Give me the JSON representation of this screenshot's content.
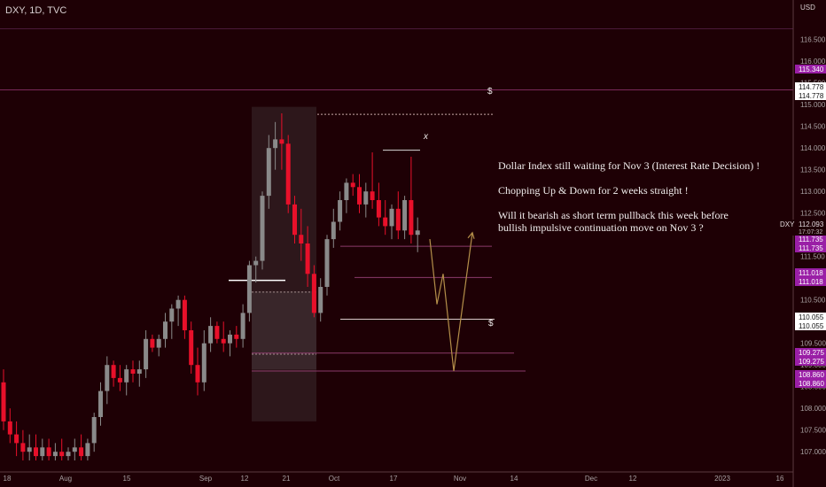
{
  "header": {
    "symbol": "DXY, 1D, TVC",
    "currency": "USD"
  },
  "annotation": {
    "line1": "Dollar Index still waiting for Nov 3 (Interest Rate Decision) !",
    "line2": "Chopping Up & Down for 2 weeks straight !",
    "line3": "Will it bearish as short term pullback this week before",
    "line4": "bullish impulsive continuation move on Nov 3 ?"
  },
  "marks": {
    "dollar_top": "$",
    "dollar_bottom": "$",
    "x_mark": "x"
  },
  "colors": {
    "background": "#1e0005",
    "bull": "#8a8a8a",
    "bear": "#e8102a",
    "level_badge": "#9a1fa6",
    "price_badge_bg": "#ffffff",
    "projection": "#b48f4a"
  },
  "chart_data": {
    "type": "candlestick",
    "symbol": "DXY",
    "interval": "1D",
    "source": "TVC",
    "y_range": [
      106.8,
      116.8
    ],
    "y_ticks": [
      "116.500",
      "116.000",
      "115.500",
      "115.000",
      "114.500",
      "114.000",
      "113.500",
      "113.000",
      "112.500",
      "112.000",
      "111.500",
      "111.000",
      "110.500",
      "110.000",
      "109.500",
      "109.000",
      "108.500",
      "108.000",
      "107.500",
      "107.000"
    ],
    "x_ticks": [
      "18",
      "Aug",
      "15",
      "Sep",
      "12",
      "21",
      "Oct",
      "17",
      "Nov",
      "14",
      "Dec",
      "12",
      "2023",
      "16"
    ],
    "current_price": {
      "symbol": "DXY",
      "value": "112.093",
      "countdown": "17:07:32"
    },
    "price_labels": [
      {
        "value": "115.340",
        "style": "badge"
      },
      {
        "value": "114.778",
        "style": "white"
      },
      {
        "value": "114.778",
        "style": "white"
      },
      {
        "value": "111.735",
        "style": "badge"
      },
      {
        "value": "111.735",
        "style": "badge"
      },
      {
        "value": "111.018",
        "style": "badge"
      },
      {
        "value": "111.018",
        "style": "badge"
      },
      {
        "value": "110.055",
        "style": "white"
      },
      {
        "value": "110.055",
        "style": "white"
      },
      {
        "value": "109.275",
        "style": "badge"
      },
      {
        "value": "109.275",
        "style": "badge"
      },
      {
        "value": "108.860",
        "style": "badge"
      },
      {
        "value": "108.860",
        "style": "badge"
      }
    ],
    "levels": [
      115.34,
      114.778,
      111.735,
      111.018,
      110.055,
      109.275,
      108.86
    ],
    "candles": [
      [
        108.6,
        108.9,
        107.5,
        107.7
      ],
      [
        107.7,
        108.0,
        107.2,
        107.4
      ],
      [
        107.4,
        107.7,
        106.9,
        107.2
      ],
      [
        107.2,
        107.5,
        106.8,
        107.0
      ],
      [
        107.0,
        107.4,
        106.8,
        107.1
      ],
      [
        107.1,
        107.4,
        106.8,
        106.9
      ],
      [
        106.9,
        107.3,
        106.8,
        107.1
      ],
      [
        107.1,
        107.3,
        106.8,
        106.9
      ],
      [
        106.9,
        107.2,
        106.8,
        107.0
      ],
      [
        107.0,
        107.3,
        106.8,
        106.9
      ],
      [
        106.9,
        107.1,
        106.8,
        107.0
      ],
      [
        107.0,
        107.3,
        106.8,
        107.1
      ],
      [
        107.1,
        107.4,
        106.8,
        106.9
      ],
      [
        106.9,
        107.3,
        106.8,
        107.2
      ],
      [
        107.2,
        107.9,
        107.0,
        107.8
      ],
      [
        107.8,
        108.6,
        107.6,
        108.4
      ],
      [
        108.4,
        109.2,
        108.1,
        109.0
      ],
      [
        109.0,
        109.1,
        108.5,
        108.7
      ],
      [
        108.7,
        109.0,
        108.4,
        108.6
      ],
      [
        108.6,
        109.0,
        108.3,
        108.9
      ],
      [
        108.9,
        109.1,
        108.6,
        108.8
      ],
      [
        108.8,
        109.1,
        108.5,
        108.9
      ],
      [
        108.9,
        109.8,
        108.7,
        109.6
      ],
      [
        109.6,
        109.7,
        109.3,
        109.4
      ],
      [
        109.4,
        109.7,
        109.2,
        109.6
      ],
      [
        109.6,
        110.2,
        109.4,
        110.0
      ],
      [
        110.0,
        110.4,
        109.6,
        110.3
      ],
      [
        110.3,
        110.6,
        109.9,
        110.5
      ],
      [
        110.5,
        110.6,
        109.6,
        109.8
      ],
      [
        109.8,
        110.0,
        108.8,
        109.0
      ],
      [
        109.0,
        109.4,
        108.3,
        108.6
      ],
      [
        108.6,
        109.8,
        108.4,
        109.5
      ],
      [
        109.5,
        110.1,
        109.3,
        109.9
      ],
      [
        109.9,
        110.0,
        109.5,
        109.6
      ],
      [
        109.6,
        110.0,
        109.3,
        109.5
      ],
      [
        109.5,
        109.8,
        109.2,
        109.7
      ],
      [
        109.7,
        109.9,
        109.4,
        109.6
      ],
      [
        109.6,
        110.4,
        109.4,
        110.2
      ],
      [
        110.2,
        111.4,
        110.0,
        111.3
      ],
      [
        111.3,
        111.5,
        110.9,
        111.4
      ],
      [
        111.4,
        113.0,
        111.2,
        112.9
      ],
      [
        112.9,
        114.3,
        112.6,
        114.0
      ],
      [
        114.0,
        114.6,
        113.5,
        114.2
      ],
      [
        114.2,
        114.8,
        113.5,
        114.1
      ],
      [
        114.1,
        114.3,
        112.5,
        112.7
      ],
      [
        112.7,
        112.9,
        111.8,
        112.0
      ],
      [
        112.0,
        112.6,
        111.4,
        111.8
      ],
      [
        111.8,
        112.2,
        110.8,
        111.1
      ],
      [
        111.1,
        111.3,
        110.1,
        110.2
      ],
      [
        110.2,
        111.0,
        110.0,
        110.8
      ],
      [
        110.8,
        112.0,
        110.6,
        111.9
      ],
      [
        111.9,
        112.6,
        111.7,
        112.3
      ],
      [
        112.3,
        113.0,
        112.1,
        112.8
      ],
      [
        112.8,
        113.3,
        112.5,
        113.2
      ],
      [
        113.2,
        113.4,
        112.9,
        113.1
      ],
      [
        113.1,
        113.4,
        112.5,
        112.7
      ],
      [
        112.7,
        113.2,
        112.4,
        113.0
      ],
      [
        113.0,
        113.9,
        112.6,
        112.8
      ],
      [
        112.8,
        113.2,
        112.2,
        112.4
      ],
      [
        112.4,
        112.8,
        112.0,
        112.2
      ],
      [
        112.2,
        112.7,
        111.9,
        112.6
      ],
      [
        112.6,
        113.0,
        111.9,
        112.1
      ],
      [
        112.1,
        112.9,
        111.9,
        112.8
      ],
      [
        112.8,
        113.8,
        111.8,
        112.0
      ],
      [
        112.0,
        112.4,
        111.6,
        112.1
      ]
    ],
    "projection_path": [
      [
        111.9,
        111.9
      ],
      [
        110.4,
        110.4
      ],
      [
        111.1,
        111.1
      ],
      [
        108.86,
        108.86
      ],
      [
        112.05,
        112.05
      ]
    ]
  }
}
